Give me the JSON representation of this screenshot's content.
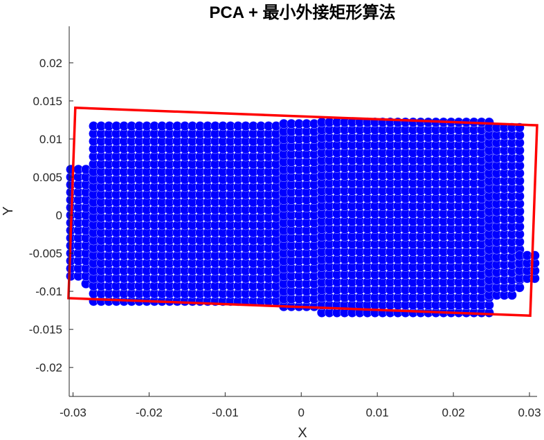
{
  "chart_data": {
    "type": "scatter",
    "title": "PCA + 最小外接矩形算法",
    "xlabel": "X",
    "ylabel": "Y",
    "xlim": [
      -0.0305,
      0.031
    ],
    "ylim": [
      -0.0238,
      0.0248
    ],
    "xticks": [
      -0.03,
      -0.02,
      -0.01,
      0,
      0.01,
      0.02,
      0.03
    ],
    "xtick_labels": [
      "-0.03",
      "-0.02",
      "-0.01",
      "0",
      "0.01",
      "0.02",
      "0.03"
    ],
    "yticks": [
      -0.02,
      -0.015,
      -0.01,
      -0.005,
      0,
      0.005,
      0.01,
      0.015,
      0.02
    ],
    "ytick_labels": [
      "-0.02",
      "-0.015",
      "-0.01",
      "-0.005",
      "0",
      "0.005",
      "0.01",
      "0.015",
      "0.02"
    ],
    "grid": false,
    "point_series": {
      "name": "points",
      "color": "#0000ff",
      "spacing": 0.001,
      "shape": [
        {
          "x_range": [
            -0.0303,
            -0.0283
          ],
          "y_range": [
            -0.008,
            0.0065
          ]
        },
        {
          "x_range": [
            -0.0283,
            -0.0273
          ],
          "y_range": [
            -0.009,
            0.0065
          ]
        },
        {
          "x_range": [
            -0.0273,
            -0.0023
          ],
          "y_range": [
            -0.0113,
            0.012
          ]
        },
        {
          "x_range": [
            -0.0023,
            0.0027
          ],
          "y_range": [
            -0.012,
            0.0128
          ]
        },
        {
          "x_range": [
            0.0027,
            0.0247
          ],
          "y_range": [
            -0.0128,
            0.0125
          ]
        },
        {
          "x_range": [
            0.0247,
            0.0277
          ],
          "y_range": [
            -0.0105,
            0.012
          ]
        },
        {
          "x_range": [
            0.0277,
            0.0287
          ],
          "y_range": [
            -0.0095,
            0.012
          ]
        },
        {
          "x_range": [
            0.0287,
            0.0307
          ],
          "y_range": [
            -0.0083,
            -0.005
          ]
        }
      ]
    },
    "bounding_rectangle": {
      "name": "minimum bounding rectangle",
      "color": "#ff0000",
      "corners": [
        [
          -0.0297,
          0.0141
        ],
        [
          0.031,
          0.0118
        ],
        [
          0.0301,
          -0.0132
        ],
        [
          -0.0306,
          -0.0109
        ]
      ]
    }
  }
}
